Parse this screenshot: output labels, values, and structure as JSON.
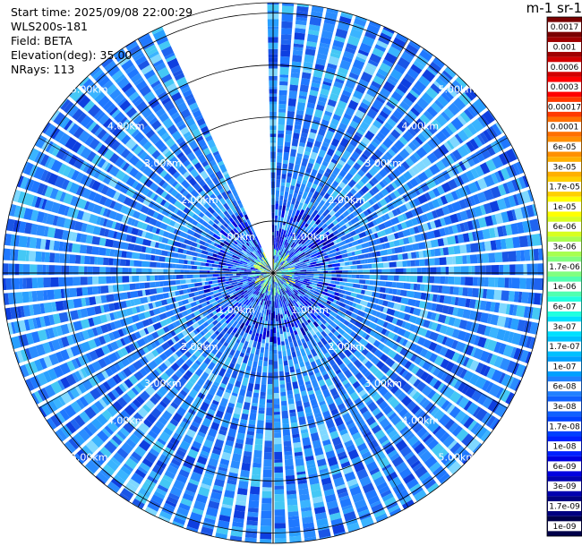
{
  "header": {
    "start_time": "Start time: 2025/09/08 22:00:29",
    "instrument": "WLS200s-181",
    "field": "Field: BETA",
    "elevation": "Elevation(deg): 35.00",
    "nrays": "NRays: 113"
  },
  "colorbar": {
    "unit_label": "m-1 sr-1",
    "ticks": [
      "0.0017",
      "0.001",
      "0.0006",
      "0.0003",
      "0.00017",
      "0.0001",
      "6e-05",
      "3e-05",
      "1.7e-05",
      "1e-05",
      "6e-06",
      "3e-06",
      "1.7e-06",
      "1e-06",
      "6e-07",
      "3e-07",
      "1.7e-07",
      "1e-07",
      "6e-08",
      "3e-08",
      "1.7e-08",
      "1e-08",
      "6e-09",
      "3e-09",
      "1.7e-09",
      "1e-09"
    ],
    "colors": [
      "#7a0000",
      "#a00000",
      "#d20000",
      "#ff0000",
      "#ff3a00",
      "#ff7000",
      "#ff9000",
      "#ffb000",
      "#ffd000",
      "#ffff00",
      "#d8ff20",
      "#a8ff50",
      "#80ff80",
      "#50ffb0",
      "#20ffe0",
      "#00e0ff",
      "#00c0ff",
      "#00a0ff",
      "#2080ff",
      "#1060ff",
      "#0040ff",
      "#0020ff",
      "#0000e0",
      "#0000b0",
      "#000080",
      "#00004a"
    ]
  },
  "chart_data": {
    "type": "heatmap",
    "projection": "polar PPI",
    "field": "BETA",
    "elevation_deg": 35.0,
    "n_rays": 113,
    "range_rings_km": [
      1,
      2,
      3,
      4,
      5
    ],
    "ring_labels": [
      "1.00km",
      "2.00km",
      "3.00km",
      "4.00km",
      "5.00km"
    ],
    "max_range_km": 5.2,
    "missing_sector_deg": [
      -23,
      0
    ],
    "color_scale": "log",
    "value_range": [
      1e-09,
      0.0017
    ],
    "dominant_value_range": [
      3e-08,
      3e-07
    ]
  }
}
